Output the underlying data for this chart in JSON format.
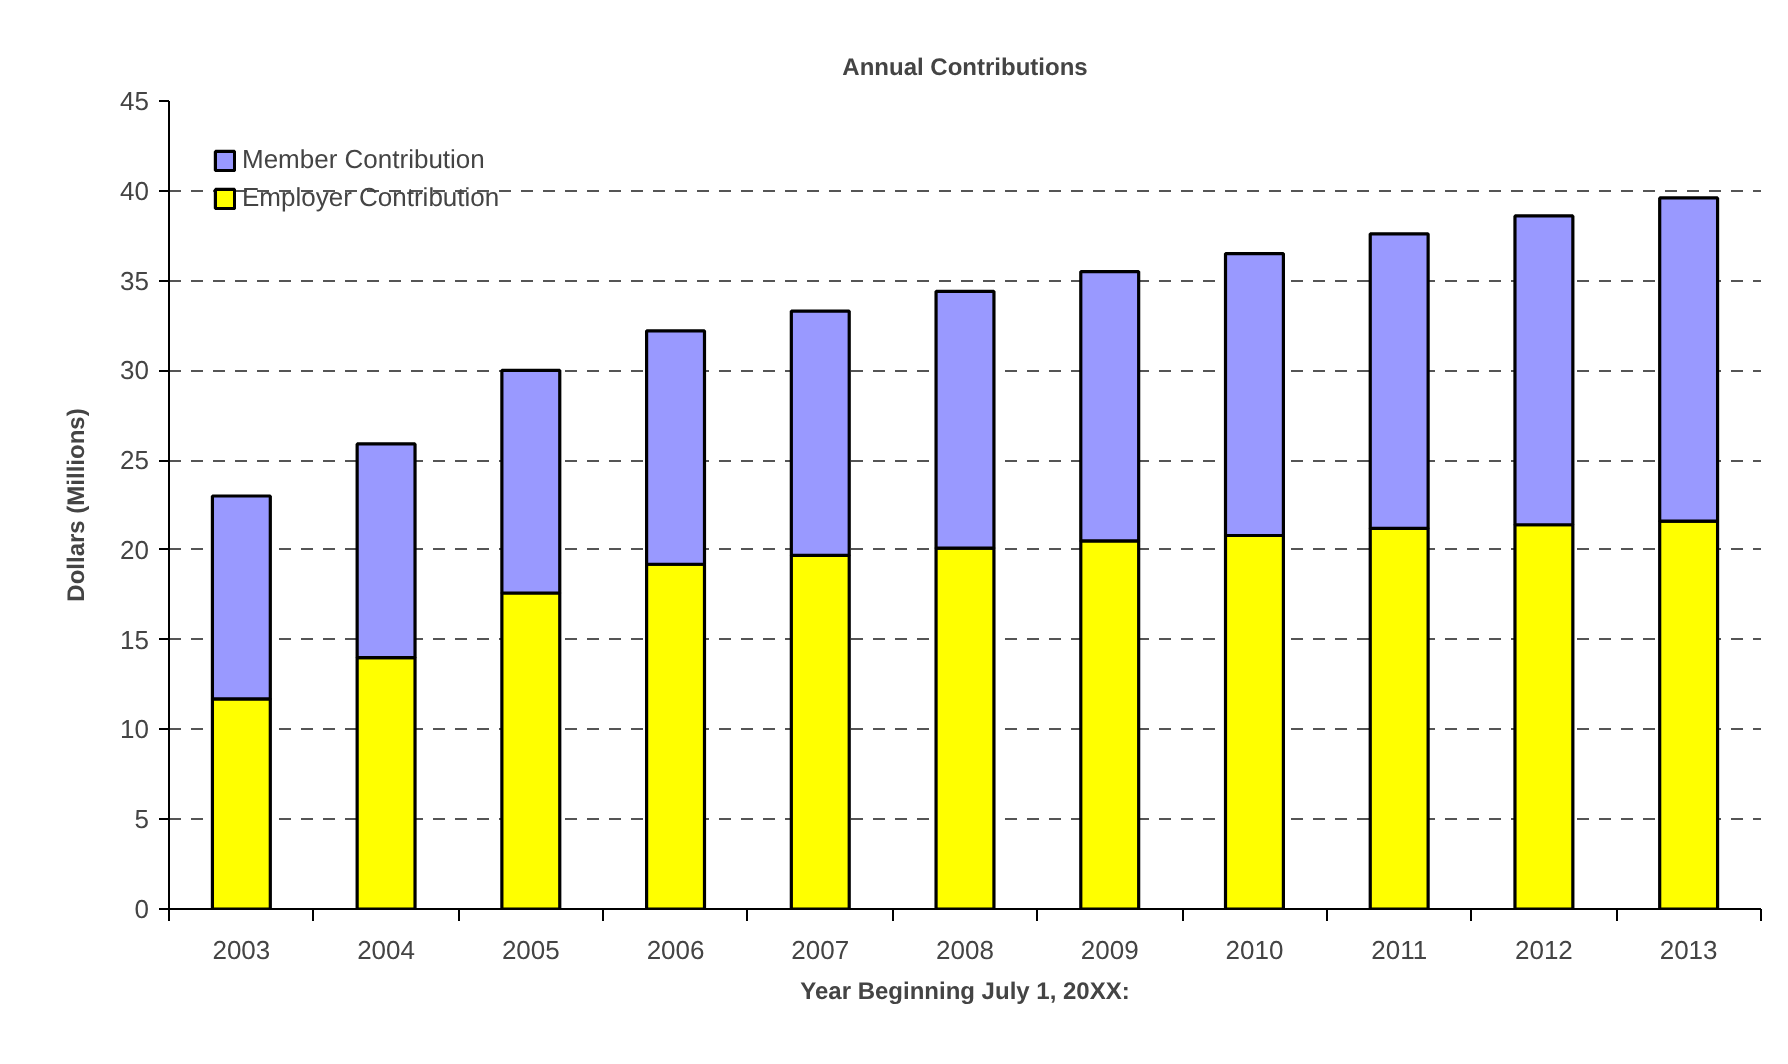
{
  "chart_data": {
    "type": "bar",
    "title": "Annual Contributions",
    "xlabel": "Year Beginning July 1, 20XX:",
    "ylabel": "Dollars (Millions)",
    "categories": [
      "2003",
      "2004",
      "2005",
      "2006",
      "2007",
      "2008",
      "2009",
      "2010",
      "2011",
      "2012",
      "2013"
    ],
    "stacked": true,
    "series": [
      {
        "name": "Employer Contribution",
        "color": "#ffff00",
        "values": [
          11.7,
          14.0,
          17.6,
          19.2,
          19.7,
          20.1,
          20.5,
          20.8,
          21.2,
          21.4,
          21.6
        ]
      },
      {
        "name": "Member Contribution",
        "color": "#9999ff",
        "values": [
          11.3,
          11.9,
          12.4,
          13.0,
          13.6,
          14.3,
          15.0,
          15.7,
          16.4,
          17.2,
          18.0
        ]
      }
    ],
    "ylim": [
      0,
      45
    ],
    "yticks": [
      0,
      5,
      10,
      15,
      20,
      25,
      30,
      35,
      40,
      45
    ],
    "grid": "y",
    "legend": "top left"
  }
}
